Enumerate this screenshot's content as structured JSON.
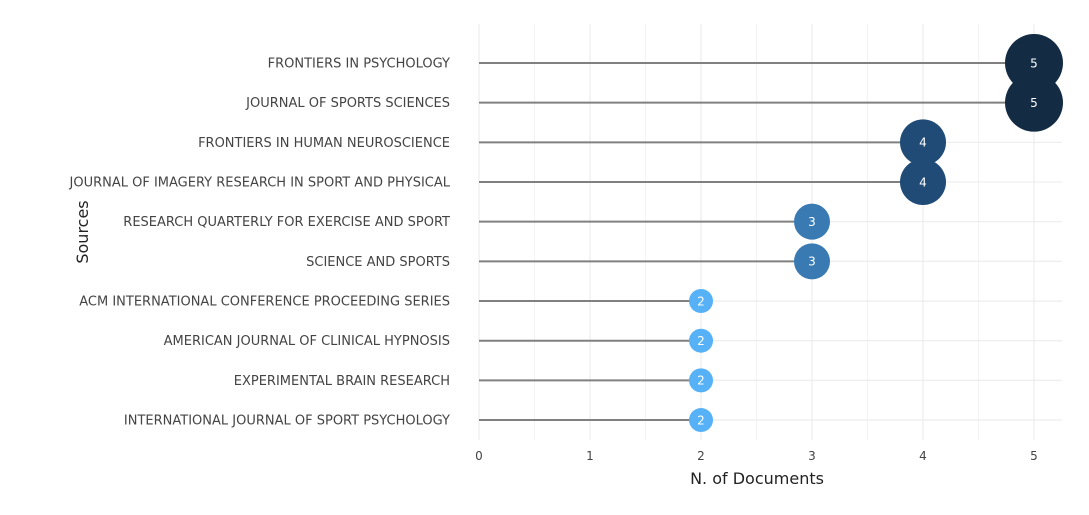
{
  "chart_data": {
    "type": "scatter",
    "xlabel": "N. of Documents",
    "ylabel": "Sources",
    "xlim": [
      0,
      5
    ],
    "xticks": [
      "0",
      "1",
      "2",
      "3",
      "4",
      "5"
    ],
    "grid": true,
    "categories": [
      "FRONTIERS IN PSYCHOLOGY",
      "JOURNAL OF SPORTS SCIENCES",
      "FRONTIERS IN HUMAN NEUROSCIENCE",
      "JOURNAL OF IMAGERY RESEARCH IN SPORT AND PHYSICAL",
      "RESEARCH QUARTERLY FOR EXERCISE AND SPORT",
      "SCIENCE AND SPORTS",
      "ACM INTERNATIONAL CONFERENCE PROCEEDING SERIES",
      "AMERICAN JOURNAL OF CLINICAL HYPNOSIS",
      "EXPERIMENTAL BRAIN RESEARCH",
      "INTERNATIONAL JOURNAL OF SPORT PSYCHOLOGY"
    ],
    "values": [
      5,
      5,
      4,
      4,
      3,
      3,
      2,
      2,
      2,
      2
    ],
    "value_labels": [
      "5",
      "5",
      "4",
      "4",
      "3",
      "3",
      "2",
      "2",
      "2",
      "2"
    ],
    "colors": {
      "5": "#132b43",
      "4": "#1f4b76",
      "3": "#3a7ab3",
      "2": "#56b1f7",
      "stem": "#808080",
      "grid": "#ebebeb",
      "text": "#444444"
    }
  }
}
